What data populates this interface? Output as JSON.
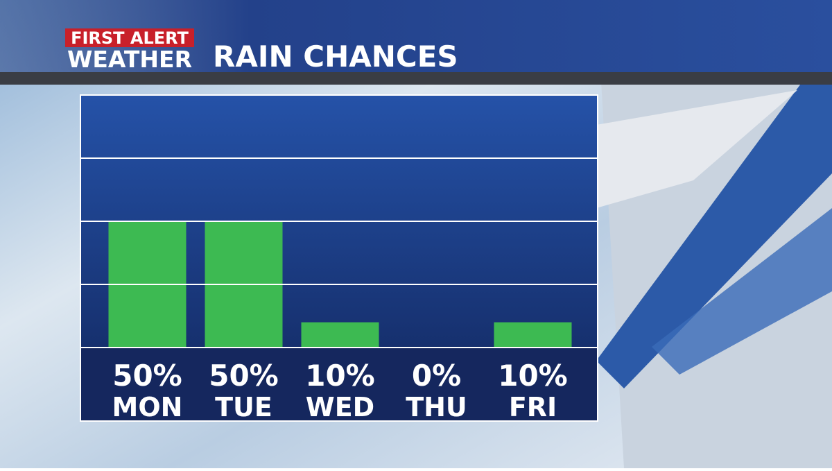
{
  "chart_data": {
    "type": "bar",
    "logo": {
      "line1": "FIRST ALERT",
      "line2": "WEATHER"
    },
    "title": "RAIN CHANCES",
    "categories": [
      "MON",
      "TUE",
      "WED",
      "THU",
      "FRI"
    ],
    "values": [
      50,
      50,
      10,
      0,
      10
    ],
    "value_labels": [
      "50%",
      "50%",
      "10%",
      "0%",
      "10%"
    ],
    "color": "#3dba52",
    "ylim": [
      0,
      100
    ],
    "yticks": [
      0,
      25,
      50,
      75,
      100
    ],
    "grid": true
  }
}
